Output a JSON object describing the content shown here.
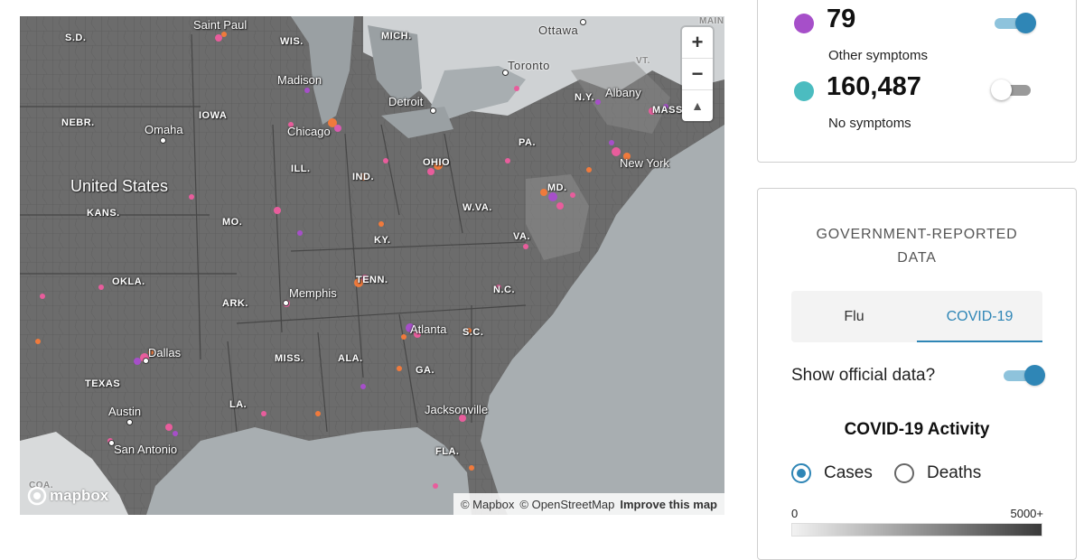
{
  "map": {
    "zoom_in": "+",
    "zoom_out": "−",
    "compass": "▲",
    "logo": "mapbox",
    "attribution": {
      "mapbox": "© Mapbox",
      "osm": "© OpenStreetMap",
      "improve": "Improve this map"
    },
    "labels": {
      "sd": "S.D.",
      "saint_paul": "Saint Paul",
      "wis": "WIS.",
      "mich": "MICH.",
      "ottawa": "Ottawa",
      "toronto": "Toronto",
      "vt": "VT.",
      "madison": "Madison",
      "nebr": "NEBR.",
      "iowa": "IOWA",
      "detroit": "Detroit",
      "ny": "N.Y.",
      "albany": "Albany",
      "mass": "MASS.",
      "omaha": "Omaha",
      "chicago": "Chicago",
      "pa": "PA.",
      "ill": "ILL.",
      "ohio": "OHIO",
      "ind": "IND.",
      "new_york": "New York",
      "united_states": "United States",
      "md": "MD.",
      "kans": "KANS.",
      "wva": "W.VA.",
      "mo": "MO.",
      "va": "VA.",
      "ky": "KY.",
      "tenn": "TENN.",
      "okla": "OKLA.",
      "memphis": "Memphis",
      "nc": "N.C.",
      "ark": "ARK.",
      "atlanta": "Atlanta",
      "sc": "S.C.",
      "dallas": "Dallas",
      "miss": "MISS.",
      "ala": "ALA.",
      "ga": "GA.",
      "texas": "TEXAS",
      "la": "LA.",
      "austin": "Austin",
      "jacksonville": "Jacksonville",
      "san_antonio": "San Antonio",
      "fla": "FLA.",
      "coa": "COA.",
      "maine": "MAIN"
    }
  },
  "symptoms": [
    {
      "count": "79",
      "label": "Other symptoms",
      "color": "#a64fc9",
      "enabled": true
    },
    {
      "count": "160,487",
      "label": "No symptoms",
      "color": "#4bbcc0",
      "enabled": false
    }
  ],
  "government": {
    "title_line1": "GOVERNMENT-REPORTED",
    "title_line2": "DATA",
    "tabs": [
      {
        "label": "Flu",
        "active": false
      },
      {
        "label": "COVID-19",
        "active": true
      }
    ],
    "show_official_label": "Show official data?",
    "show_official": true,
    "activity_title": "COVID-19 Activity",
    "metrics": [
      {
        "label": "Cases",
        "checked": true
      },
      {
        "label": "Deaths",
        "checked": false
      }
    ],
    "legend": {
      "min": "0",
      "max": "5000+"
    }
  },
  "colors": {
    "accent": "#2f86b6",
    "other_symptoms": "#a64fc9",
    "no_symptoms": "#4bbcc0",
    "map_land": "#6c6c6c",
    "map_water": "#a8aeb1"
  }
}
